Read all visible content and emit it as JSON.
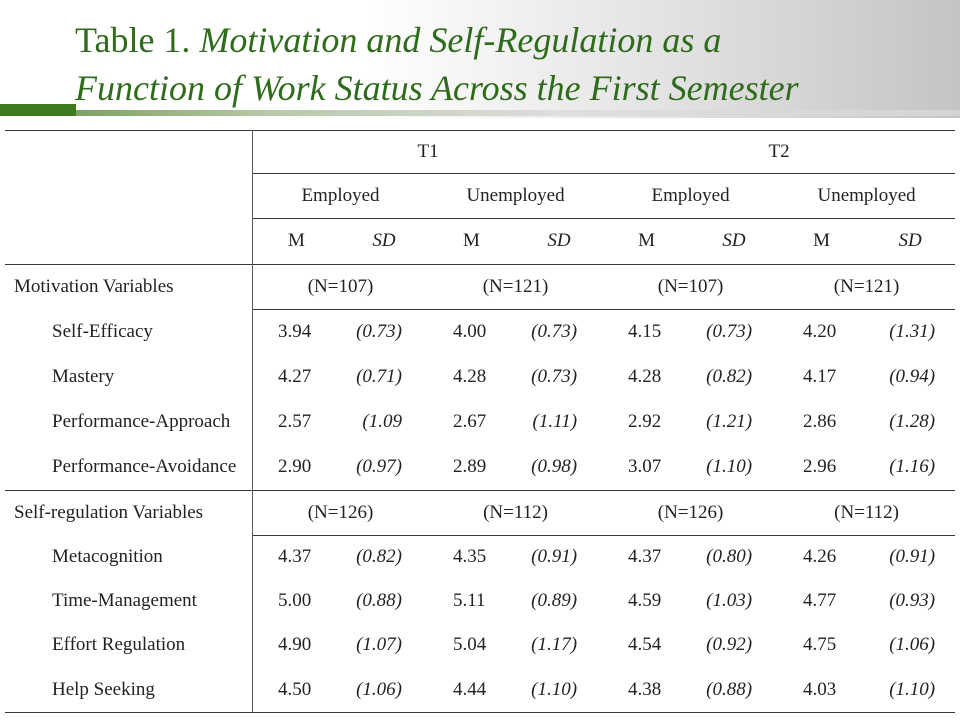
{
  "title": {
    "number": "Table 1.",
    "line1": "Motivation and Self-Regulation as a",
    "line2": "Function of Work Status Across the First Semester"
  },
  "table": {
    "time_headers": [
      "T1",
      "T2"
    ],
    "group_headers": [
      "Employed",
      "Unemployed",
      "Employed",
      "Unemployed"
    ],
    "stat_headers": [
      "M",
      "SD",
      "M",
      "SD",
      "M",
      "SD",
      "M",
      "SD"
    ],
    "sections": [
      {
        "label": "Motivation Variables",
        "n": [
          "(N=107)",
          "(N=121)",
          "(N=107)",
          "(N=121)"
        ],
        "rows": [
          {
            "label": "Self-Efficacy",
            "cells": [
              "3.94",
              "(0.73)",
              "4.00",
              "(0.73)",
              "4.15",
              "(0.73)",
              "4.20",
              "(1.31)"
            ]
          },
          {
            "label": "Mastery",
            "cells": [
              "4.27",
              "(0.71)",
              "4.28",
              "(0.73)",
              "4.28",
              "(0.82)",
              "4.17",
              "(0.94)"
            ]
          },
          {
            "label": "Performance-Approach",
            "cells": [
              "2.57",
              "(1.09",
              "2.67",
              "(1.11)",
              "2.92",
              "(1.21)",
              "2.86",
              "(1.28)"
            ]
          },
          {
            "label": "Performance-Avoidance",
            "cells": [
              "2.90",
              "(0.97)",
              "2.89",
              "(0.98)",
              "3.07",
              "(1.10)",
              "2.96",
              "(1.16)"
            ]
          }
        ]
      },
      {
        "label": "Self-regulation Variables",
        "n": [
          "(N=126)",
          "(N=112)",
          "(N=126)",
          "(N=112)"
        ],
        "rows": [
          {
            "label": "Metacognition",
            "cells": [
              "4.37",
              "(0.82)",
              "4.35",
              "(0.91)",
              "4.37",
              "(0.80)",
              "4.26",
              "(0.91)"
            ]
          },
          {
            "label": "Time-Management",
            "cells": [
              "5.00",
              "(0.88)",
              "5.11",
              "(0.89)",
              "4.59",
              "(1.03)",
              "4.77",
              "(0.93)"
            ]
          },
          {
            "label": "Effort Regulation",
            "cells": [
              "4.90",
              "(1.07)",
              "5.04",
              "(1.17)",
              "4.54",
              "(0.92)",
              "4.75",
              "(1.06)"
            ]
          },
          {
            "label": "Help Seeking",
            "cells": [
              "4.50",
              "(1.06)",
              "4.44",
              "(1.10)",
              "4.38",
              "(0.88)",
              "4.03",
              "(1.10)"
            ]
          }
        ]
      }
    ]
  },
  "colors": {
    "title": "#2e6b1a",
    "accent_green": "#3d7a20",
    "rule": "#3a3a3a",
    "table_text": "#222222"
  }
}
